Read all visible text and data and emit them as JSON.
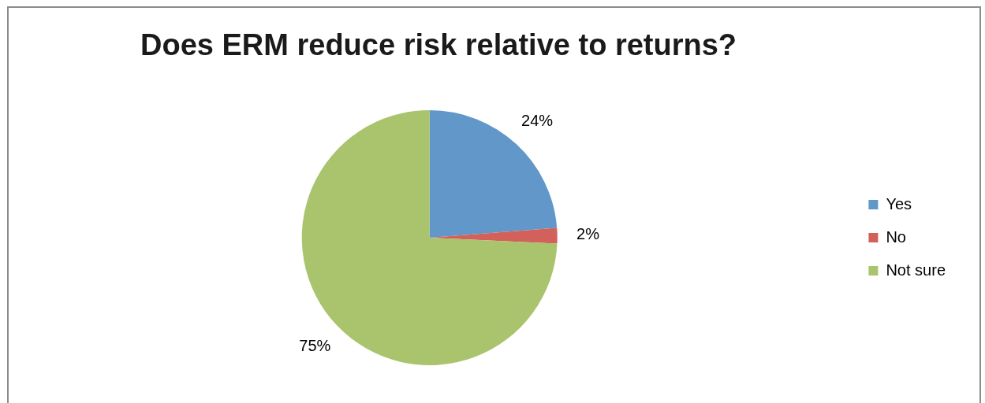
{
  "chart_data": {
    "type": "pie",
    "title": "Does ERM reduce risk relative to returns?",
    "categories": [
      "Yes",
      "No",
      "Not sure"
    ],
    "values": [
      24,
      2,
      75
    ],
    "value_labels": [
      "24%",
      "2%",
      "75%"
    ],
    "colors": [
      "#6197c9",
      "#d3615b",
      "#a9c46c"
    ],
    "legend": "right"
  }
}
